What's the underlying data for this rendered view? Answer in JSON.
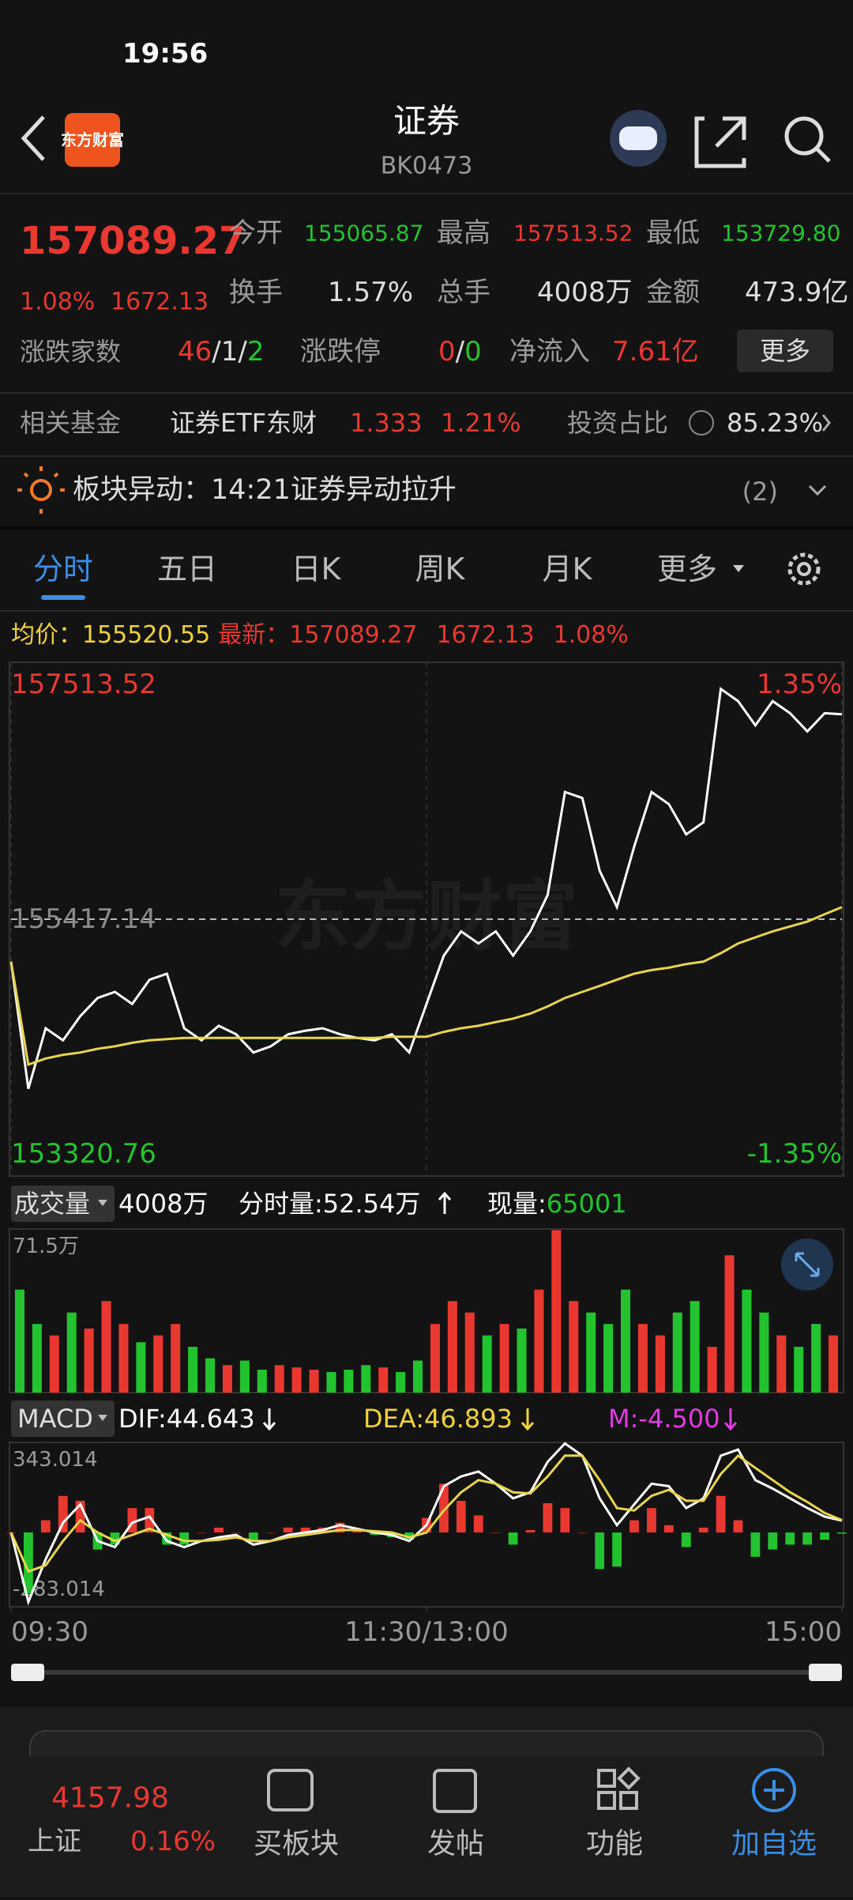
{
  "status_bar": {
    "time": "19:56"
  },
  "header": {
    "logo": "东方财富",
    "title": "证券",
    "code": "BK0473"
  },
  "quote": {
    "price": "157089.27",
    "change_pct": "1.08%",
    "change": "1672.13",
    "fields": [
      {
        "label": "今开",
        "value": "155065.87"
      },
      {
        "label": "最高",
        "value": "157513.52"
      },
      {
        "label": "最低",
        "value": "153729.80"
      },
      {
        "label": "换手",
        "value": "1.57%"
      },
      {
        "label": "总手",
        "value": "4008万"
      },
      {
        "label": "金额",
        "value": "473.9亿"
      }
    ],
    "breadth": {
      "label": "涨跌家数",
      "parts": [
        "46",
        "/",
        "1",
        "/",
        "2"
      ]
    },
    "limit": {
      "label": "涨跌停",
      "parts": [
        "0",
        "/",
        "0"
      ]
    },
    "net_inflow": {
      "label": "净流入",
      "value": "7.61亿"
    },
    "more_button": "更多"
  },
  "fund": {
    "label": "相关基金",
    "name": "证券ETF东财",
    "price": "1.333",
    "change_pct": "1.21%",
    "weight_label": "投资占比",
    "weight": "85.23%"
  },
  "alert": {
    "label": "板块异动：",
    "text": "14:21证券异动拉升",
    "count": "(2)"
  },
  "tabs": [
    "分时",
    "五日",
    "日K",
    "周K",
    "月K",
    "更多"
  ],
  "summary": {
    "avg_label": "均价：",
    "avg": "155520.55",
    "last_label": "最新：",
    "last": "157089.27",
    "change": "1672.13",
    "change_pct": "1.08%"
  },
  "volume_header": {
    "selector": "成交量",
    "total": "4008万",
    "period": "分时量:52.54万",
    "current_label": "现量:",
    "current": "65001"
  },
  "macd_header": {
    "selector": "MACD",
    "dif": "DIF:44.643",
    "dea": "DEA:46.893",
    "m": "M:-4.500"
  },
  "bottom_bar": {
    "index_value": "4157.98",
    "index_name": "上证",
    "index_change": "0.16%",
    "nav": [
      "买板块",
      "发帖",
      "功能",
      "加自选"
    ]
  },
  "chart_data": [
    {
      "type": "line",
      "x": [
        0,
        5,
        10,
        15,
        20,
        25,
        30,
        35,
        40,
        45,
        50,
        55,
        60,
        65,
        70,
        75,
        80,
        85,
        90,
        95,
        100,
        105,
        110,
        115,
        120,
        125,
        130,
        135,
        140,
        145,
        150,
        155,
        160,
        165,
        170,
        175,
        180,
        185,
        190,
        195,
        200,
        205,
        210,
        215,
        220,
        225,
        230,
        235,
        240
      ],
      "series": [
        {
          "color": "#ffffff",
          "values": [
            155071,
            154033,
            154527,
            154428,
            154626,
            154774,
            154824,
            154725,
            154923,
            154972,
            154527,
            154428,
            154547,
            154478,
            154329,
            154379,
            154478,
            154507,
            154527,
            154478,
            154448,
            154428,
            154478,
            154329,
            154725,
            155120,
            155318,
            155219,
            155318,
            155120,
            155318,
            155615,
            156455,
            156406,
            155813,
            155516,
            156010,
            156455,
            156356,
            156109,
            156208,
            157296,
            157197,
            156999,
            157197,
            157098,
            156950,
            157098,
            157089.27
          ]
        },
        {
          "color": "#e8d44d",
          "values": [
            155071,
            154230,
            154280,
            154310,
            154329,
            154359,
            154379,
            154408,
            154428,
            154438,
            154448,
            154448,
            154448,
            154448,
            154448,
            154448,
            154448,
            154448,
            154448,
            154448,
            154448,
            154448,
            154458,
            154458,
            154458,
            154497,
            154527,
            154547,
            154577,
            154606,
            154646,
            154705,
            154774,
            154824,
            154873,
            154923,
            154972,
            155002,
            155021,
            155051,
            155071,
            155140,
            155219,
            155269,
            155318,
            155358,
            155397,
            155457,
            155516
          ]
        }
      ],
      "xlim": [
        0,
        240
      ],
      "ylim": [
        153320.76,
        157513.52
      ],
      "yticks": [
        153320.76,
        155417.14,
        157513.52
      ],
      "y2lim": [
        -1.35,
        1.35
      ],
      "y2ticks": [
        {
          "value": -1.35,
          "label": "-1.35%"
        },
        {
          "value": 1.35,
          "label": "1.35%"
        }
      ],
      "grid": true
    },
    {
      "type": "bar",
      "x": [
        2.5,
        7.5,
        12.5,
        17.5,
        22.5,
        27.5,
        32.5,
        37.5,
        42.5,
        47.5,
        52.5,
        57.5,
        62.5,
        67.5,
        72.5,
        77.5,
        82.5,
        87.5,
        92.5,
        97.5,
        102.5,
        107.5,
        112.5,
        117.5,
        122.5,
        127.5,
        132.5,
        137.5,
        142.5,
        147.5,
        152.5,
        157.5,
        162.5,
        167.5,
        172.5,
        177.5,
        182.5,
        187.5,
        192.5,
        197.5,
        202.5,
        207.5,
        212.5,
        217.5,
        222.5,
        227.5,
        232.5,
        237.5
      ],
      "values": [
        45,
        30,
        25,
        35,
        28,
        40,
        30,
        22,
        25,
        30,
        20,
        15,
        12,
        14,
        10,
        12,
        11,
        10,
        9,
        10,
        12,
        11,
        9,
        14,
        30,
        40,
        35,
        25,
        30,
        28,
        45,
        71,
        40,
        35,
        30,
        45,
        30,
        25,
        35,
        40,
        20,
        60,
        45,
        35,
        25,
        20,
        30,
        25
      ],
      "bar_colors": [
        "#22c32e",
        "#22c32e",
        "#e8382f",
        "#22c32e",
        "#e8382f",
        "#e8382f",
        "#e8382f",
        "#22c32e",
        "#e8382f",
        "#e8382f",
        "#22c32e",
        "#22c32e",
        "#e8382f",
        "#22c32e",
        "#22c32e",
        "#e8382f",
        "#e8382f",
        "#e8382f",
        "#22c32e",
        "#22c32e",
        "#22c32e",
        "#e8382f",
        "#22c32e",
        "#22c32e",
        "#e8382f",
        "#e8382f",
        "#e8382f",
        "#22c32e",
        "#e8382f",
        "#22c32e",
        "#e8382f",
        "#e8382f",
        "#e8382f",
        "#22c32e",
        "#22c32e",
        "#22c32e",
        "#e8382f",
        "#e8382f",
        "#22c32e",
        "#22c32e",
        "#e8382f",
        "#e8382f",
        "#22c32e",
        "#22c32e",
        "#e8382f",
        "#22c32e",
        "#22c32e",
        "#e8382f"
      ],
      "xlim": [
        0,
        240
      ],
      "ylim": [
        0,
        71.5
      ],
      "yticks": [
        {
          "value": 71.5,
          "label": "71.5万"
        }
      ]
    },
    {
      "type": "macd",
      "x": [
        0,
        5,
        10,
        15,
        20,
        25,
        30,
        35,
        40,
        45,
        50,
        55,
        60,
        65,
        70,
        75,
        80,
        85,
        90,
        95,
        100,
        105,
        110,
        115,
        120,
        125,
        130,
        135,
        140,
        145,
        150,
        155,
        160,
        165,
        170,
        175,
        180,
        185,
        190,
        195,
        200,
        205,
        210,
        215,
        220,
        225,
        230,
        235,
        240
      ],
      "series": [
        {
          "color": "#ffffff",
          "values": [
            0,
            -264.5,
            -102.1,
            37.1,
            106.7,
            -32.5,
            -55.7,
            37.1,
            60.3,
            -32.5,
            -55.7,
            -32.5,
            -18.6,
            -9.3,
            -46.4,
            -32.5,
            -9.3,
            0,
            9.3,
            27.8,
            13.9,
            0,
            -9.3,
            -32.5,
            27.8,
            176.3,
            213.4,
            232,
            185.6,
            129.9,
            153.1,
            269.1,
            338.7,
            292.3,
            129.9,
            27.8,
            106.7,
            185.6,
            176.3,
            92.8,
            129.9,
            292.3,
            315.5,
            199.5,
            167,
            129.9,
            92.8,
            60.3,
            44.643
          ]
        },
        {
          "color": "#e8d44d",
          "values": [
            0,
            -148.5,
            -125.3,
            -32.5,
            46.4,
            0,
            -32.5,
            -9.3,
            13.9,
            -9.3,
            -32.5,
            -32.5,
            -27.8,
            -18.6,
            -32.5,
            -32.5,
            -18.6,
            -9.3,
            0,
            9.3,
            9.3,
            4.6,
            0,
            -18.6,
            0,
            83.5,
            153.1,
            199.5,
            185.6,
            153.1,
            148.5,
            213.4,
            292.3,
            292.3,
            199.5,
            92.8,
            83.5,
            139.2,
            162.4,
            120.6,
            120.6,
            222.7,
            292.3,
            245.9,
            199.5,
            153.1,
            116,
            74.2,
            46.893
          ]
        }
      ],
      "bars": [
        0,
        -232,
        46.4,
        139.2,
        120.6,
        -65,
        -46.4,
        92.8,
        92.8,
        -46.4,
        -46.4,
        0,
        18.4,
        0,
        -27.8,
        0,
        18.6,
        18.6,
        18.6,
        37,
        9.2,
        -9.2,
        -18.6,
        -27.8,
        55.6,
        185.6,
        120.6,
        65,
        0,
        -46.4,
        9.2,
        111.4,
        92.8,
        0,
        -139.2,
        -130,
        46.4,
        92.8,
        27.8,
        -55.6,
        18.6,
        139.2,
        46.4,
        -92.8,
        -65,
        -46.4,
        -46.4,
        -27.8,
        -4.5
      ],
      "up_color": "#e8382f",
      "down_color": "#22c32e",
      "xlim": [
        0,
        240
      ],
      "xticks": [
        {
          "value": 0,
          "label": "09:30"
        },
        {
          "value": 120,
          "label": "11:30/13:00"
        },
        {
          "value": 240,
          "label": "15:00"
        }
      ],
      "ylim": [
        -283.014,
        343.014
      ],
      "yticks": [
        -283.014,
        343.014
      ]
    }
  ]
}
